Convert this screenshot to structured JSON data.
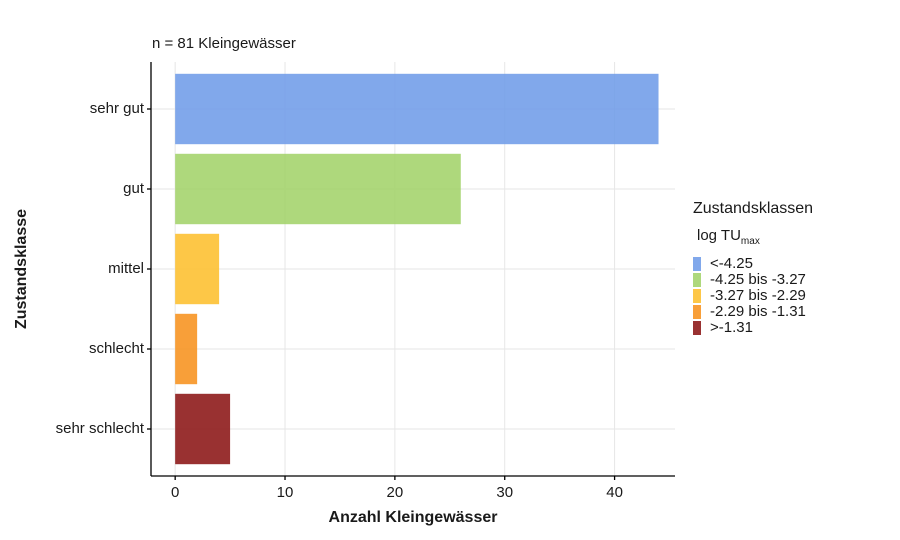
{
  "chart_data": {
    "type": "bar",
    "orientation": "horizontal",
    "title": "n =  81 Kleingewässer",
    "x_label": "Anzahl Kleingewässer",
    "y_label": "Zustandsklasse",
    "categories": [
      "sehr gut",
      "gut",
      "mittel",
      "schlecht",
      "sehr schlecht"
    ],
    "values": [
      44,
      26,
      4,
      2,
      5
    ],
    "colors": [
      "#6f9ce8",
      "#a3d36a",
      "#fdbf2e",
      "#f7921e",
      "#8b1414"
    ],
    "xlim": [
      -2.2,
      45.5
    ],
    "xticks": [
      0,
      10,
      20,
      30,
      40
    ],
    "grid": true,
    "legend": {
      "title": "Zustandsklassen",
      "subtitle": "log TU",
      "subtitle_sub": "max",
      "labels": [
        "<-4.25",
        "-4.25 bis -3.27",
        "-3.27 bis -2.29",
        "-2.29 bis -1.31",
        ">-1.31"
      ]
    }
  }
}
